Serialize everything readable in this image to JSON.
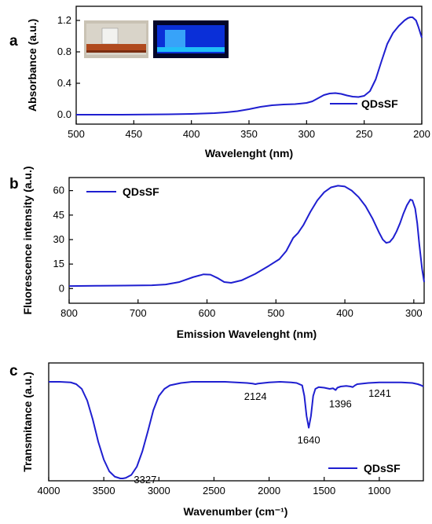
{
  "colors": {
    "series": "#1f1fd0",
    "axis": "#000000"
  },
  "chart_data": [
    {
      "panel": "a",
      "type": "line",
      "xlabel": "Wavelenght (nm)",
      "ylabel": "Absorbance (a.u.)",
      "xlim": [
        500,
        200
      ],
      "ylim": [
        -0.12,
        1.38
      ],
      "xticks": [
        500,
        450,
        400,
        350,
        300,
        250,
        200
      ],
      "yticks": [
        0.0,
        0.4,
        0.8,
        1.2
      ],
      "ytick_labels": [
        "0.0",
        "0.4",
        "0.8",
        "1.2"
      ],
      "legend_position": "bottom-right",
      "inset_photos": [
        "vial-daylight-photo",
        "vial-uv-photo"
      ],
      "series": [
        {
          "name": "QDsSF",
          "x": [
            500,
            480,
            460,
            440,
            420,
            400,
            390,
            380,
            370,
            360,
            350,
            340,
            330,
            320,
            310,
            300,
            295,
            290,
            285,
            280,
            275,
            270,
            265,
            260,
            255,
            250,
            245,
            240,
            235,
            230,
            225,
            220,
            215,
            212,
            210,
            208,
            205,
            203,
            200
          ],
          "y": [
            0.0,
            0.0,
            0.0,
            0.002,
            0.005,
            0.01,
            0.015,
            0.02,
            0.03,
            0.045,
            0.07,
            0.1,
            0.12,
            0.13,
            0.135,
            0.15,
            0.17,
            0.21,
            0.25,
            0.27,
            0.275,
            0.265,
            0.245,
            0.23,
            0.225,
            0.24,
            0.3,
            0.45,
            0.68,
            0.9,
            1.04,
            1.13,
            1.2,
            1.23,
            1.24,
            1.24,
            1.2,
            1.12,
            0.98
          ]
        }
      ]
    },
    {
      "panel": "b",
      "type": "line",
      "xlabel": "Emission Wavelenght (nm)",
      "ylabel": "Fluorescence intensity (a.u.)",
      "xlim": [
        800,
        285
      ],
      "ylim": [
        -9,
        68
      ],
      "xticks": [
        800,
        700,
        600,
        500,
        400,
        300
      ],
      "yticks": [
        0,
        15,
        30,
        45,
        60
      ],
      "legend_position": "top-left",
      "series": [
        {
          "name": "QDsSF",
          "x": [
            800,
            760,
            720,
            680,
            660,
            640,
            620,
            605,
            595,
            585,
            575,
            565,
            550,
            530,
            510,
            495,
            485,
            475,
            468,
            460,
            450,
            440,
            430,
            420,
            410,
            400,
            390,
            380,
            370,
            360,
            350,
            345,
            340,
            335,
            330,
            325,
            320,
            315,
            310,
            305,
            302,
            298,
            295,
            292,
            288,
            285
          ],
          "y": [
            1.5,
            1.7,
            1.8,
            2.0,
            2.5,
            4.0,
            7.0,
            8.7,
            8.5,
            6.5,
            4.0,
            3.5,
            5.0,
            9.0,
            14.0,
            18.0,
            23.0,
            31.0,
            34.0,
            39.0,
            47.0,
            54.0,
            59.0,
            62.0,
            63.0,
            62.5,
            60.0,
            56.0,
            50.5,
            43.0,
            34.0,
            30.0,
            28.0,
            28.5,
            31.0,
            35.0,
            40.0,
            46.0,
            51.0,
            54.5,
            54.0,
            49.0,
            40.0,
            27.0,
            12.0,
            4.0
          ]
        }
      ]
    },
    {
      "panel": "c",
      "type": "line",
      "xlabel": "Wavenumber (cm⁻¹)",
      "ylabel": "Transmitance (a.u.)",
      "xlim": [
        4000,
        600
      ],
      "ylim": [
        0,
        100
      ],
      "xticks": [
        4000,
        3500,
        3000,
        2500,
        2000,
        1500,
        1000
      ],
      "yticks": [],
      "legend_position": "bottom-right",
      "annotations": [
        {
          "text": "3327",
          "x": 3327
        },
        {
          "text": "2124",
          "x": 2124
        },
        {
          "text": "1640",
          "x": 1640
        },
        {
          "text": "1396",
          "x": 1396
        },
        {
          "text": "1241",
          "x": 1241
        }
      ],
      "series": [
        {
          "name": "QDsSF",
          "x": [
            4000,
            3900,
            3800,
            3750,
            3700,
            3650,
            3600,
            3550,
            3500,
            3450,
            3400,
            3350,
            3327,
            3300,
            3250,
            3200,
            3150,
            3100,
            3050,
            3000,
            2950,
            2900,
            2800,
            2700,
            2600,
            2500,
            2400,
            2300,
            2200,
            2150,
            2124,
            2100,
            2050,
            2000,
            1900,
            1800,
            1750,
            1700,
            1680,
            1660,
            1640,
            1620,
            1600,
            1580,
            1550,
            1500,
            1450,
            1420,
            1396,
            1380,
            1350,
            1300,
            1260,
            1241,
            1220,
            1200,
            1100,
            1000,
            900,
            800,
            700,
            650,
            620,
            600
          ],
          "y": [
            84,
            84,
            83.5,
            82,
            78,
            68,
            52,
            33,
            18,
            8,
            3.5,
            2,
            2,
            2.5,
            5,
            12,
            25,
            42,
            60,
            72,
            78,
            81,
            83,
            84,
            84,
            84,
            84,
            83.5,
            83,
            82.5,
            82,
            82.5,
            83,
            83.5,
            84,
            83.5,
            83,
            81,
            72,
            55,
            45,
            55,
            72,
            78,
            79.5,
            79,
            78,
            78.5,
            77,
            79,
            80,
            80.5,
            80,
            79.5,
            81,
            82,
            83,
            83.5,
            83.5,
            83.5,
            83,
            82,
            81,
            80
          ]
        }
      ]
    }
  ]
}
